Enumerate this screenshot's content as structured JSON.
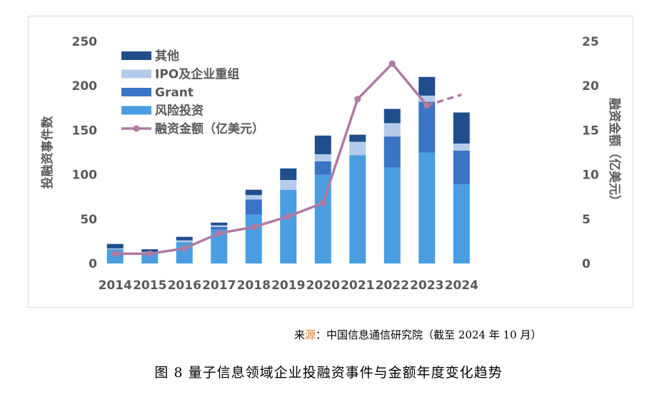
{
  "chart_data": {
    "type": "bar",
    "categories": [
      "2014",
      "2015",
      "2016",
      "2017",
      "2018",
      "2019",
      "2020",
      "2021",
      "2022",
      "2023",
      "2024"
    ],
    "series": [
      {
        "name": "风险投资",
        "type": "bar",
        "axis": "left",
        "color": "#4a9de0",
        "values": [
          16,
          12,
          24,
          38,
          55,
          83,
          100,
          122,
          108,
          125,
          89
        ]
      },
      {
        "name": "Grant",
        "type": "bar",
        "axis": "left",
        "color": "#3a74c4",
        "values": [
          0,
          0,
          0,
          3,
          17,
          0,
          15,
          0,
          35,
          57,
          38
        ]
      },
      {
        "name": "IPO及企业重组",
        "type": "bar",
        "axis": "left",
        "color": "#b4cbea",
        "values": [
          1,
          1,
          2,
          2,
          5,
          11,
          8,
          15,
          15,
          7,
          8
        ]
      },
      {
        "name": "其他",
        "type": "bar",
        "axis": "left",
        "color": "#1f4e8c",
        "values": [
          5,
          3,
          4,
          3,
          6,
          13,
          21,
          8,
          16,
          21,
          35
        ]
      },
      {
        "name": "融资金额（亿美元）",
        "type": "line",
        "axis": "right",
        "color": "#b07aa1",
        "values": [
          1.1,
          1.1,
          1.7,
          3.4,
          4.1,
          5.3,
          6.8,
          18.5,
          22.5,
          17.8,
          19.0
        ],
        "dashed_last_segment": true
      }
    ],
    "y_left": {
      "label": "投融资事件数",
      "ylim": [
        0,
        250
      ],
      "ticks": [
        "0",
        "50",
        "100",
        "150",
        "200",
        "250"
      ]
    },
    "y_right": {
      "label": "融资金额（亿美元）",
      "ylim": [
        0,
        25
      ],
      "ticks": [
        "0",
        "5",
        "10",
        "15",
        "20",
        "25"
      ]
    },
    "legend_order": [
      "其他",
      "IPO及企业重组",
      "Grant",
      "风险投资",
      "融资金额（亿美元）"
    ],
    "legend_position": "top-left",
    "grid": false
  },
  "source_prefix": "来",
  "source_accent": "源",
  "source_rest": "：中国信息通信研究院（截至 2024 年 10 月）",
  "caption": "图 8 量子信息领域企业投融资事件与金额年度变化趋势"
}
